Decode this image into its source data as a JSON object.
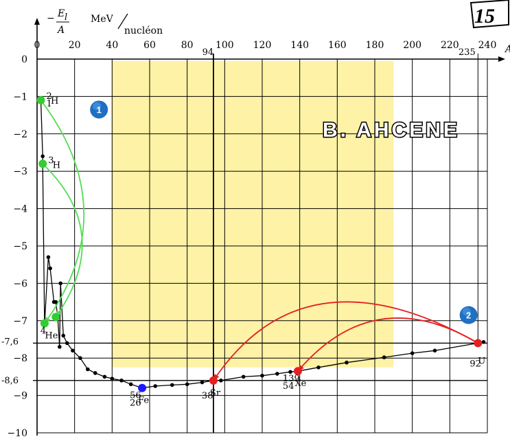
{
  "page_number": "15",
  "logo_text": "B. AHCENE",
  "chart_data": {
    "type": "line",
    "ylabel_numerator": "E",
    "ylabel_subscript": "l",
    "ylabel_denominator": "A",
    "ylabel_unit": "MeV",
    "ylabel_unit_denominator": "nucléon",
    "xlabel": "A",
    "xlim": [
      0,
      240
    ],
    "ylim": [
      -10,
      0
    ],
    "grid": true,
    "x_ticks": [
      0,
      20,
      40,
      60,
      80,
      100,
      120,
      140,
      160,
      180,
      200,
      220,
      240
    ],
    "y_ticks": [
      0,
      -1,
      -2,
      -3,
      -4,
      -5,
      -6,
      -7,
      -8,
      -9,
      -10
    ],
    "y_extra_ticks": [
      {
        "value": -7.6,
        "label": "-7,6"
      },
      {
        "value": -8.6,
        "label": "-8,6"
      }
    ],
    "x_extra_ticks": [
      {
        "value": 94,
        "label": "94"
      },
      {
        "value": 235,
        "label": "235"
      }
    ],
    "y_tick_labels": [
      "0",
      "−1",
      "−2",
      "−3",
      "−4",
      "−5",
      "−6",
      "−7",
      "−8",
      "−9",
      "−10"
    ],
    "stability_region": {
      "x_from": 40,
      "x_to": 190,
      "color": "#fdf2a6"
    },
    "series": [
      {
        "points": [
          [
            2,
            -1.1
          ],
          [
            3,
            -2.6
          ],
          [
            3,
            -2.8
          ],
          [
            4,
            -7.1
          ],
          [
            6,
            -5.3
          ],
          [
            7,
            -5.6
          ],
          [
            9,
            -6.5
          ],
          [
            10,
            -6.5
          ],
          [
            11,
            -6.9
          ],
          [
            12,
            -7.7
          ],
          [
            12.5,
            -6.0
          ],
          [
            14,
            -7.4
          ],
          [
            16,
            -7.6
          ],
          [
            19,
            -7.8
          ],
          [
            23,
            -8.0
          ],
          [
            27,
            -8.3
          ],
          [
            31,
            -8.4
          ],
          [
            36,
            -8.5
          ],
          [
            40,
            -8.55
          ],
          [
            45,
            -8.6
          ],
          [
            50,
            -8.7
          ],
          [
            56,
            -8.8
          ],
          [
            63,
            -8.75
          ],
          [
            72,
            -8.72
          ],
          [
            80,
            -8.7
          ],
          [
            88,
            -8.65
          ],
          [
            94,
            -8.6
          ],
          [
            98,
            -8.6
          ],
          [
            110,
            -8.5
          ],
          [
            120,
            -8.47
          ],
          [
            128,
            -8.42
          ],
          [
            135,
            -8.37
          ],
          [
            139,
            -8.35
          ],
          [
            150,
            -8.25
          ],
          [
            165,
            -8.12
          ],
          [
            185,
            -7.98
          ],
          [
            200,
            -7.87
          ],
          [
            212,
            -7.8
          ],
          [
            235,
            -7.6
          ],
          [
            238,
            -7.57
          ]
        ]
      }
    ],
    "nuclides": [
      {
        "A": 2,
        "value": -1.1,
        "label_top": "2",
        "label_bottom": "1",
        "symbol": "H",
        "color": "#33cc33"
      },
      {
        "A": 3,
        "value": -2.8,
        "label_top": "3",
        "label_bottom": "",
        "symbol": "H",
        "color": "#33cc33"
      },
      {
        "A": 4,
        "value": -7.07,
        "label_top": "4",
        "label_bottom": "",
        "symbol": "He",
        "color": "#33cc33"
      },
      {
        "A": 10,
        "value": -6.9,
        "label_top": "",
        "label_bottom": "",
        "symbol": "",
        "color": "#33cc33"
      },
      {
        "A": 56,
        "value": -8.8,
        "label_top": "56",
        "label_bottom": "26",
        "symbol": "Fe",
        "color": "#1a1aff"
      },
      {
        "A": 94,
        "value": -8.6,
        "label_top": "",
        "label_bottom": "38",
        "symbol": "Sr",
        "color": "#e62020"
      },
      {
        "A": 139,
        "value": -8.35,
        "label_top": "139",
        "label_bottom": "54",
        "symbol": "Xe",
        "color": "#e62020"
      },
      {
        "A": 235,
        "value": -7.6,
        "label_top": "",
        "label_bottom": "92",
        "symbol": "U",
        "color": "#e62020"
      }
    ],
    "badges": [
      {
        "label": "1",
        "A": 33,
        "value": -1.35
      },
      {
        "label": "2",
        "A": 230,
        "value": -6.85
      }
    ],
    "fusion_arcs": [
      {
        "from_A": 2,
        "from_value": -1.1,
        "to_A": 4,
        "to_value": -7.07,
        "color": "#55dd55"
      },
      {
        "from_A": 3,
        "from_value": -2.8,
        "to_A": 10,
        "to_value": -6.9,
        "color": "#55dd55"
      }
    ],
    "fission_arcs": [
      {
        "from_A": 235,
        "from_value": -7.6,
        "to_A": 94,
        "to_value": -8.6,
        "color": "#e62020"
      },
      {
        "from_A": 235,
        "from_value": -7.6,
        "to_A": 139,
        "to_value": -8.35,
        "color": "#e62020"
      }
    ]
  }
}
